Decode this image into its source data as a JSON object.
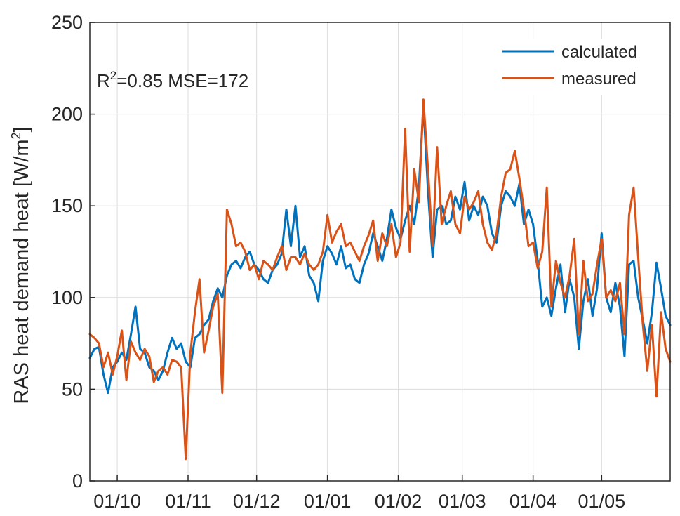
{
  "chart_data": {
    "type": "line",
    "title": "",
    "xlabel": "",
    "ylabel": "RAS heat demand heat [W/m²]",
    "ylabel_parts": {
      "main": "RAS heat demand heat [W/m",
      "sup": "2",
      "end": "]"
    },
    "ylim": [
      0,
      250
    ],
    "yticks": [
      0,
      50,
      100,
      150,
      200,
      250
    ],
    "xlim": [
      "2014-09-19",
      "2015-05-31"
    ],
    "xtick_dates": [
      "2014-10-01",
      "2014-11-01",
      "2014-12-01",
      "2015-01-01",
      "2015-02-01",
      "2015-03-01",
      "2015-04-01",
      "2015-05-01"
    ],
    "xtick_labels": [
      "01/10",
      "01/11",
      "01/12",
      "01/01",
      "01/02",
      "01/03",
      "01/04",
      "01/05"
    ],
    "grid": true,
    "legend_position": "top-right",
    "annotation": {
      "text_pre": "R",
      "sup": "2",
      "text_post": "=0.85 MSE=172"
    },
    "series": [
      {
        "name": "calculated",
        "color": "#0072bd",
        "points": [
          [
            "2014-09-19",
            67
          ],
          [
            "2014-09-21",
            72
          ],
          [
            "2014-09-23",
            73
          ],
          [
            "2014-09-25",
            58
          ],
          [
            "2014-09-27",
            48
          ],
          [
            "2014-09-29",
            62
          ],
          [
            "2014-10-01",
            65
          ],
          [
            "2014-10-03",
            70
          ],
          [
            "2014-10-05",
            66
          ],
          [
            "2014-10-07",
            80
          ],
          [
            "2014-10-09",
            95
          ],
          [
            "2014-10-11",
            72
          ],
          [
            "2014-10-13",
            70
          ],
          [
            "2014-10-15",
            62
          ],
          [
            "2014-10-17",
            60
          ],
          [
            "2014-10-19",
            55
          ],
          [
            "2014-10-21",
            60
          ],
          [
            "2014-10-23",
            70
          ],
          [
            "2014-10-25",
            78
          ],
          [
            "2014-10-27",
            72
          ],
          [
            "2014-10-29",
            75
          ],
          [
            "2014-10-31",
            65
          ],
          [
            "2014-11-02",
            62
          ],
          [
            "2014-11-04",
            78
          ],
          [
            "2014-11-06",
            80
          ],
          [
            "2014-11-08",
            85
          ],
          [
            "2014-11-10",
            88
          ],
          [
            "2014-11-12",
            98
          ],
          [
            "2014-11-14",
            105
          ],
          [
            "2014-11-16",
            100
          ],
          [
            "2014-11-18",
            112
          ],
          [
            "2014-11-20",
            118
          ],
          [
            "2014-11-22",
            120
          ],
          [
            "2014-11-24",
            116
          ],
          [
            "2014-11-26",
            122
          ],
          [
            "2014-11-28",
            125
          ],
          [
            "2014-11-30",
            118
          ],
          [
            "2014-12-02",
            115
          ],
          [
            "2014-12-04",
            110
          ],
          [
            "2014-12-06",
            108
          ],
          [
            "2014-12-08",
            115
          ],
          [
            "2014-12-10",
            118
          ],
          [
            "2014-12-12",
            124
          ],
          [
            "2014-12-14",
            148
          ],
          [
            "2014-12-16",
            128
          ],
          [
            "2014-12-18",
            150
          ],
          [
            "2014-12-20",
            122
          ],
          [
            "2014-12-22",
            128
          ],
          [
            "2014-12-24",
            112
          ],
          [
            "2014-12-26",
            108
          ],
          [
            "2014-12-28",
            98
          ],
          [
            "2014-12-30",
            120
          ],
          [
            "2015-01-01",
            128
          ],
          [
            "2015-01-03",
            124
          ],
          [
            "2015-01-05",
            118
          ],
          [
            "2015-01-07",
            128
          ],
          [
            "2015-01-09",
            116
          ],
          [
            "2015-01-11",
            118
          ],
          [
            "2015-01-13",
            110
          ],
          [
            "2015-01-15",
            108
          ],
          [
            "2015-01-17",
            118
          ],
          [
            "2015-01-19",
            124
          ],
          [
            "2015-01-21",
            135
          ],
          [
            "2015-01-23",
            128
          ],
          [
            "2015-01-25",
            120
          ],
          [
            "2015-01-27",
            132
          ],
          [
            "2015-01-29",
            148
          ],
          [
            "2015-01-31",
            138
          ],
          [
            "2015-02-02",
            132
          ],
          [
            "2015-02-04",
            142
          ],
          [
            "2015-02-06",
            150
          ],
          [
            "2015-02-08",
            140
          ],
          [
            "2015-02-10",
            160
          ],
          [
            "2015-02-12",
            205
          ],
          [
            "2015-02-14",
            158
          ],
          [
            "2015-02-16",
            122
          ],
          [
            "2015-02-18",
            148
          ],
          [
            "2015-02-20",
            150
          ],
          [
            "2015-02-22",
            140
          ],
          [
            "2015-02-24",
            142
          ],
          [
            "2015-02-26",
            155
          ],
          [
            "2015-02-28",
            148
          ],
          [
            "2015-03-02",
            163
          ],
          [
            "2015-03-04",
            142
          ],
          [
            "2015-03-06",
            150
          ],
          [
            "2015-03-08",
            145
          ],
          [
            "2015-03-10",
            155
          ],
          [
            "2015-03-12",
            150
          ],
          [
            "2015-03-14",
            135
          ],
          [
            "2015-03-16",
            130
          ],
          [
            "2015-03-18",
            150
          ],
          [
            "2015-03-20",
            158
          ],
          [
            "2015-03-22",
            155
          ],
          [
            "2015-03-24",
            150
          ],
          [
            "2015-03-26",
            162
          ],
          [
            "2015-03-28",
            140
          ],
          [
            "2015-03-30",
            148
          ],
          [
            "2015-04-01",
            140
          ],
          [
            "2015-04-03",
            120
          ],
          [
            "2015-04-05",
            95
          ],
          [
            "2015-04-07",
            100
          ],
          [
            "2015-04-09",
            90
          ],
          [
            "2015-04-11",
            105
          ],
          [
            "2015-04-13",
            118
          ],
          [
            "2015-04-15",
            92
          ],
          [
            "2015-04-17",
            110
          ],
          [
            "2015-04-19",
            100
          ],
          [
            "2015-04-21",
            72
          ],
          [
            "2015-04-23",
            98
          ],
          [
            "2015-04-25",
            110
          ],
          [
            "2015-04-27",
            90
          ],
          [
            "2015-04-29",
            105
          ],
          [
            "2015-05-01",
            135
          ],
          [
            "2015-05-03",
            100
          ],
          [
            "2015-05-05",
            92
          ],
          [
            "2015-05-07",
            108
          ],
          [
            "2015-05-09",
            95
          ],
          [
            "2015-05-11",
            68
          ],
          [
            "2015-05-13",
            118
          ],
          [
            "2015-05-15",
            120
          ],
          [
            "2015-05-17",
            100
          ],
          [
            "2015-05-19",
            88
          ],
          [
            "2015-05-21",
            75
          ],
          [
            "2015-05-23",
            92
          ],
          [
            "2015-05-25",
            119
          ],
          [
            "2015-05-27",
            105
          ],
          [
            "2015-05-29",
            90
          ],
          [
            "2015-05-31",
            85
          ]
        ]
      },
      {
        "name": "measured",
        "color": "#d95319",
        "points": [
          [
            "2014-09-19",
            80
          ],
          [
            "2014-09-21",
            78
          ],
          [
            "2014-09-23",
            75
          ],
          [
            "2014-09-25",
            62
          ],
          [
            "2014-09-27",
            70
          ],
          [
            "2014-09-29",
            58
          ],
          [
            "2014-10-01",
            68
          ],
          [
            "2014-10-03",
            82
          ],
          [
            "2014-10-05",
            55
          ],
          [
            "2014-10-07",
            76
          ],
          [
            "2014-10-09",
            70
          ],
          [
            "2014-10-11",
            66
          ],
          [
            "2014-10-13",
            72
          ],
          [
            "2014-10-15",
            68
          ],
          [
            "2014-10-17",
            54
          ],
          [
            "2014-10-19",
            60
          ],
          [
            "2014-10-21",
            62
          ],
          [
            "2014-10-23",
            58
          ],
          [
            "2014-10-25",
            66
          ],
          [
            "2014-10-27",
            65
          ],
          [
            "2014-10-29",
            62
          ],
          [
            "2014-10-31",
            12
          ],
          [
            "2014-11-02",
            70
          ],
          [
            "2014-11-04",
            92
          ],
          [
            "2014-11-06",
            110
          ],
          [
            "2014-11-08",
            70
          ],
          [
            "2014-11-10",
            82
          ],
          [
            "2014-11-12",
            95
          ],
          [
            "2014-11-14",
            102
          ],
          [
            "2014-11-16",
            48
          ],
          [
            "2014-11-18",
            148
          ],
          [
            "2014-11-20",
            140
          ],
          [
            "2014-11-22",
            128
          ],
          [
            "2014-11-24",
            130
          ],
          [
            "2014-11-26",
            125
          ],
          [
            "2014-11-28",
            115
          ],
          [
            "2014-11-30",
            118
          ],
          [
            "2014-12-02",
            110
          ],
          [
            "2014-12-04",
            120
          ],
          [
            "2014-12-06",
            118
          ],
          [
            "2014-12-08",
            115
          ],
          [
            "2014-12-10",
            122
          ],
          [
            "2014-12-12",
            128
          ],
          [
            "2014-12-14",
            115
          ],
          [
            "2014-12-16",
            122
          ],
          [
            "2014-12-18",
            122
          ],
          [
            "2014-12-20",
            118
          ],
          [
            "2014-12-22",
            124
          ],
          [
            "2014-12-24",
            118
          ],
          [
            "2014-12-26",
            115
          ],
          [
            "2014-12-28",
            118
          ],
          [
            "2014-12-30",
            125
          ],
          [
            "2015-01-01",
            145
          ],
          [
            "2015-01-03",
            130
          ],
          [
            "2015-01-05",
            136
          ],
          [
            "2015-01-07",
            140
          ],
          [
            "2015-01-09",
            128
          ],
          [
            "2015-01-11",
            130
          ],
          [
            "2015-01-13",
            125
          ],
          [
            "2015-01-15",
            120
          ],
          [
            "2015-01-17",
            128
          ],
          [
            "2015-01-19",
            134
          ],
          [
            "2015-01-21",
            142
          ],
          [
            "2015-01-23",
            120
          ],
          [
            "2015-01-25",
            135
          ],
          [
            "2015-01-27",
            128
          ],
          [
            "2015-01-29",
            140
          ],
          [
            "2015-01-31",
            122
          ],
          [
            "2015-02-02",
            130
          ],
          [
            "2015-02-04",
            192
          ],
          [
            "2015-02-06",
            125
          ],
          [
            "2015-02-08",
            170
          ],
          [
            "2015-02-10",
            152
          ],
          [
            "2015-02-12",
            208
          ],
          [
            "2015-02-14",
            170
          ],
          [
            "2015-02-16",
            128
          ],
          [
            "2015-02-18",
            182
          ],
          [
            "2015-02-20",
            140
          ],
          [
            "2015-02-22",
            150
          ],
          [
            "2015-02-24",
            158
          ],
          [
            "2015-02-26",
            140
          ],
          [
            "2015-02-28",
            135
          ],
          [
            "2015-03-02",
            155
          ],
          [
            "2015-03-04",
            148
          ],
          [
            "2015-03-06",
            152
          ],
          [
            "2015-03-08",
            158
          ],
          [
            "2015-03-10",
            140
          ],
          [
            "2015-03-12",
            130
          ],
          [
            "2015-03-14",
            126
          ],
          [
            "2015-03-16",
            135
          ],
          [
            "2015-03-18",
            155
          ],
          [
            "2015-03-20",
            168
          ],
          [
            "2015-03-22",
            170
          ],
          [
            "2015-03-24",
            180
          ],
          [
            "2015-03-26",
            165
          ],
          [
            "2015-03-28",
            148
          ],
          [
            "2015-03-30",
            128
          ],
          [
            "2015-04-01",
            130
          ],
          [
            "2015-04-03",
            116
          ],
          [
            "2015-04-05",
            125
          ],
          [
            "2015-04-07",
            160
          ],
          [
            "2015-04-09",
            95
          ],
          [
            "2015-04-11",
            120
          ],
          [
            "2015-04-13",
            108
          ],
          [
            "2015-04-15",
            100
          ],
          [
            "2015-04-17",
            112
          ],
          [
            "2015-04-19",
            132
          ],
          [
            "2015-04-21",
            80
          ],
          [
            "2015-04-23",
            120
          ],
          [
            "2015-04-25",
            98
          ],
          [
            "2015-04-27",
            102
          ],
          [
            "2015-04-29",
            118
          ],
          [
            "2015-05-01",
            132
          ],
          [
            "2015-05-03",
            100
          ],
          [
            "2015-05-05",
            104
          ],
          [
            "2015-05-07",
            98
          ],
          [
            "2015-05-09",
            108
          ],
          [
            "2015-05-11",
            80
          ],
          [
            "2015-05-13",
            145
          ],
          [
            "2015-05-15",
            160
          ],
          [
            "2015-05-17",
            122
          ],
          [
            "2015-05-19",
            86
          ],
          [
            "2015-05-21",
            60
          ],
          [
            "2015-05-23",
            85
          ],
          [
            "2015-05-25",
            46
          ],
          [
            "2015-05-27",
            92
          ],
          [
            "2015-05-29",
            72
          ],
          [
            "2015-05-31",
            65
          ]
        ]
      }
    ]
  }
}
